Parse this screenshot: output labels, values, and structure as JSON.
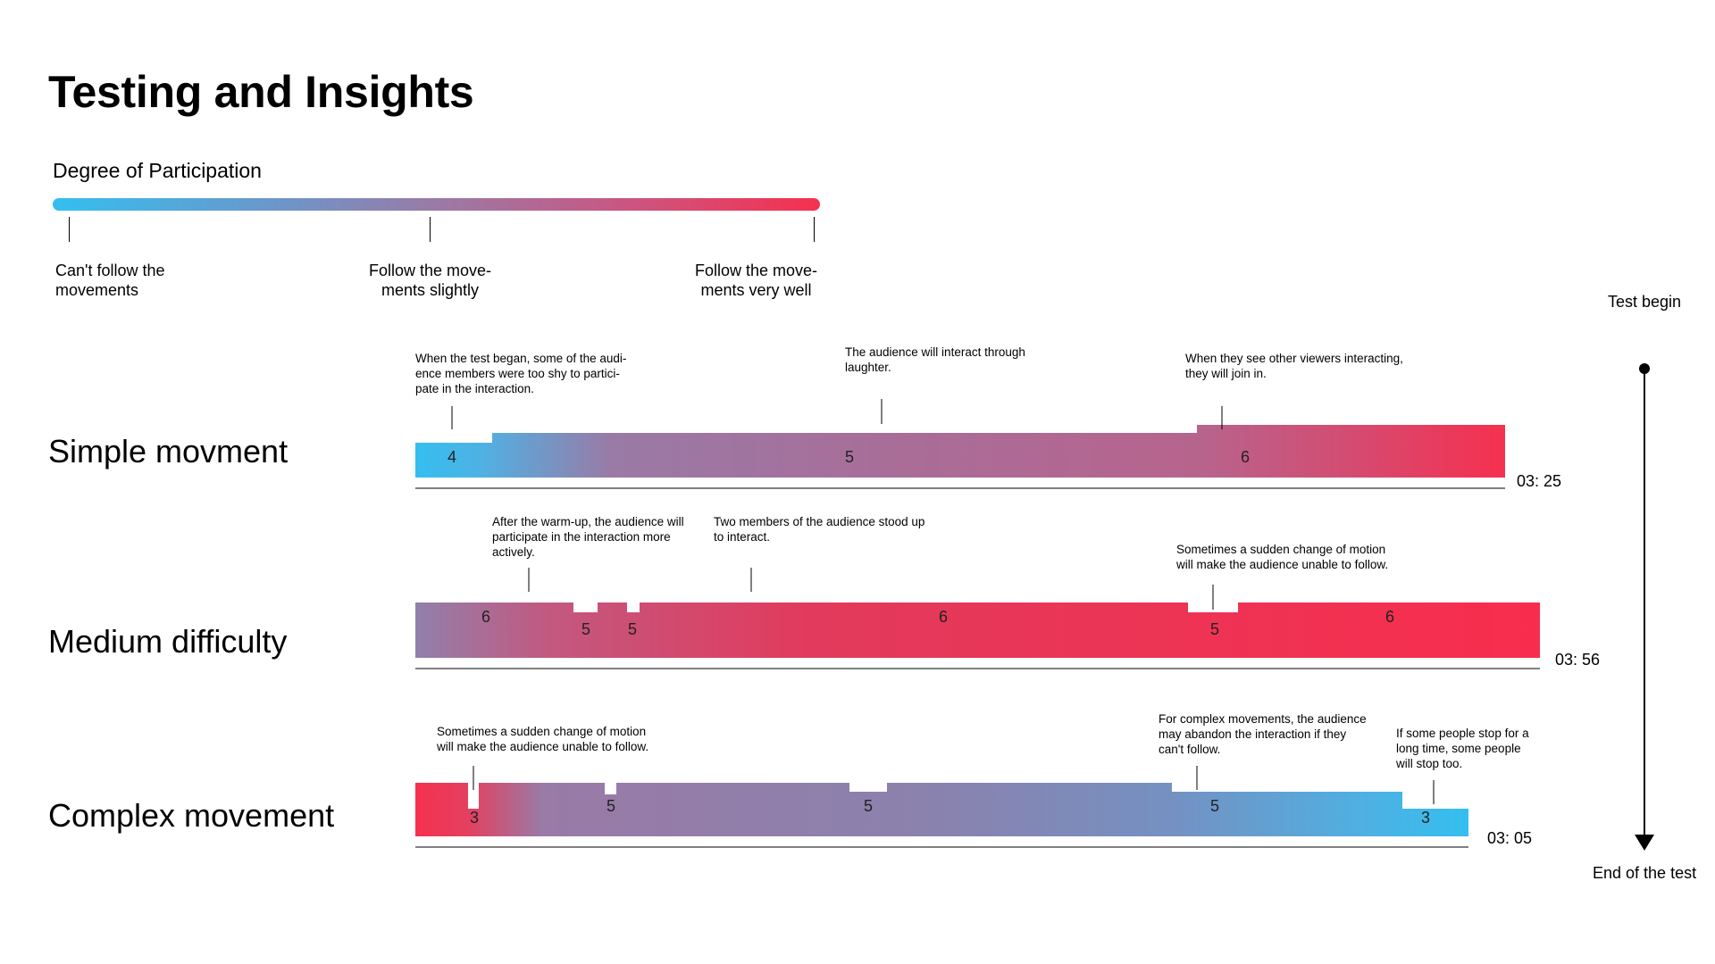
{
  "title": "Testing and Insights",
  "scale": {
    "title": "Degree of Participation",
    "labels": [
      "Can't follow the\nmovements",
      "Follow the move-\nments slightly",
      "Follow the move-\nments very well"
    ],
    "colors": {
      "low": "#33bff0",
      "mid": "#9a7aa6",
      "high": "#f6304f"
    }
  },
  "timeline": {
    "start_label": "Test begin",
    "end_label": "End of the test"
  },
  "rows": [
    {
      "label": "Simple movment",
      "duration": "03: 25",
      "numbers": [
        "4",
        "5",
        "6"
      ],
      "notes": [
        "When the test began, some of the audi-\nence members were too shy to partici-\npate in the interaction.",
        "The audience will interact through\nlaughter.",
        "When they see other viewers interacting,\nthey will join in."
      ]
    },
    {
      "label": "Medium difficulty",
      "duration": "03: 56",
      "numbers": [
        "6",
        "5",
        "5",
        "6",
        "5",
        "6"
      ],
      "notes": [
        "After the warm-up, the audience will\nparticipate in the interaction more\nactively.",
        "Two members of the audience stood up\nto interact.",
        "Sometimes a sudden change of motion\nwill make the audience unable to follow."
      ]
    },
    {
      "label": "Complex movement",
      "duration": "03: 05",
      "numbers": [
        "3",
        "5",
        "5",
        "5",
        "3"
      ],
      "notes": [
        "Sometimes a sudden change of motion\nwill make the audience unable to follow.",
        "For complex movements, the audience\nmay abandon the interaction if they\ncan't follow.",
        "If some people stop for a\nlong time, some people\nwill stop too."
      ]
    }
  ]
}
